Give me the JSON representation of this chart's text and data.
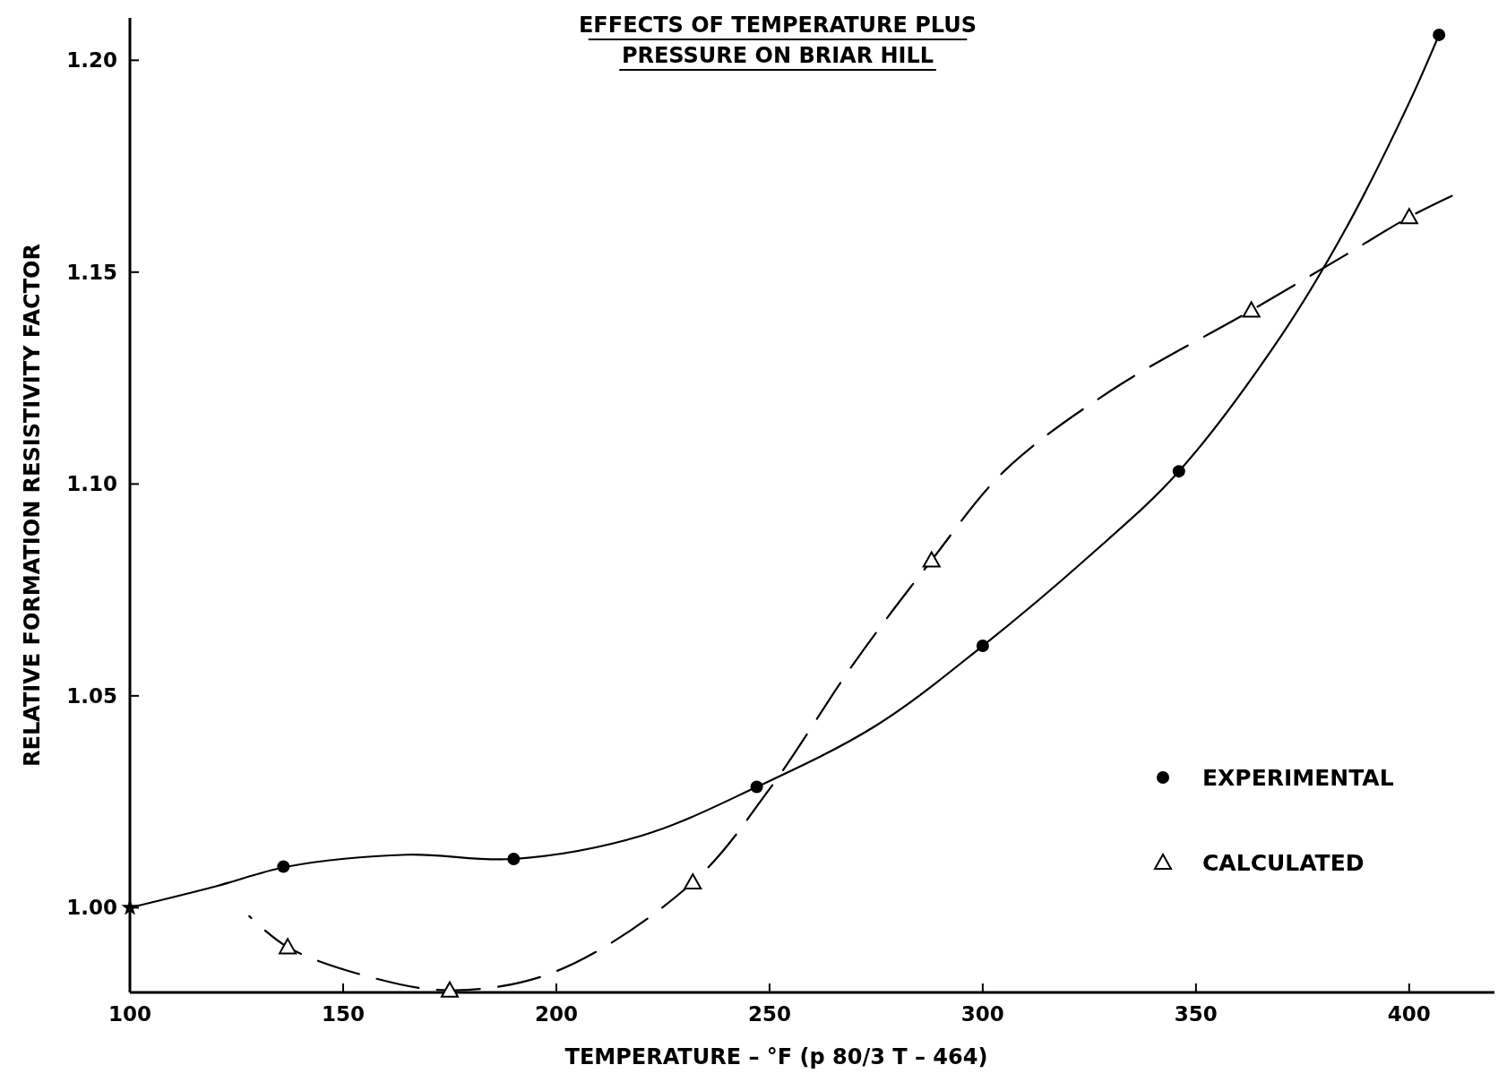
{
  "chart_data": {
    "type": "scatter",
    "title": "EFFECTS OF TEMPERATURE PLUS PRESSURE ON BRIAR HILL",
    "xlabel": "TEMPERATURE – °F (p 80/3 T – 464)",
    "ylabel": "RELATIVE FORMATION RESISTIVITY FACTOR",
    "xlim": [
      100,
      420
    ],
    "ylim": [
      0.98,
      1.21
    ],
    "xticks": [
      100,
      150,
      200,
      250,
      300,
      350,
      400
    ],
    "yticks": [
      {
        "value": 1,
        "label": "1.00"
      },
      {
        "value": 1.05,
        "label": "1.05"
      },
      {
        "value": 1.1,
        "label": "1.10"
      },
      {
        "value": 1.15,
        "label": "1.15"
      },
      {
        "value": 1.2,
        "label": "1.20"
      }
    ],
    "grid": false,
    "legend": "bottom right",
    "series": [
      {
        "type": "line",
        "color": "#000000",
        "marker": "none",
        "line_style": "solid",
        "x": [
          100,
          120,
          137,
          165,
          190,
          220,
          247,
          275,
          300,
          325,
          346,
          370,
          385,
          400,
          407
        ],
        "values": [
          1.0,
          1.005,
          1.0097,
          1.0125,
          1.0115,
          1.017,
          1.0285,
          1.043,
          1.0618,
          1.083,
          1.103,
          1.135,
          1.16,
          1.19,
          1.206
        ]
      },
      {
        "type": "line",
        "color": "#000000",
        "marker": "none",
        "line_style": "dashed",
        "x": [
          128,
          137,
          155,
          175,
          200,
          232,
          250,
          270,
          288,
          305,
          330,
          363,
          385,
          400,
          410
        ],
        "values": [
          0.998,
          0.9907,
          0.984,
          0.9805,
          0.985,
          1.006,
          1.028,
          1.058,
          1.082,
          1.103,
          1.122,
          1.141,
          1.154,
          1.163,
          1.168
        ]
      },
      {
        "color": "#000000",
        "marker": "star",
        "x": [
          100
        ],
        "values": [
          1.0
        ]
      },
      {
        "name": "EXPERIMENTAL",
        "color": "#000000",
        "marker": "circle",
        "x": [
          136,
          190,
          247,
          300,
          346,
          407
        ],
        "values": [
          1.0097,
          1.0115,
          1.0285,
          1.0618,
          1.103,
          1.206
        ]
      },
      {
        "name": "CALCULATED",
        "color": "#000000",
        "marker": "triangle",
        "x": [
          137,
          175,
          232,
          288,
          363,
          400
        ],
        "values": [
          0.9907,
          0.9805,
          1.006,
          1.082,
          1.141,
          1.163
        ]
      }
    ]
  }
}
